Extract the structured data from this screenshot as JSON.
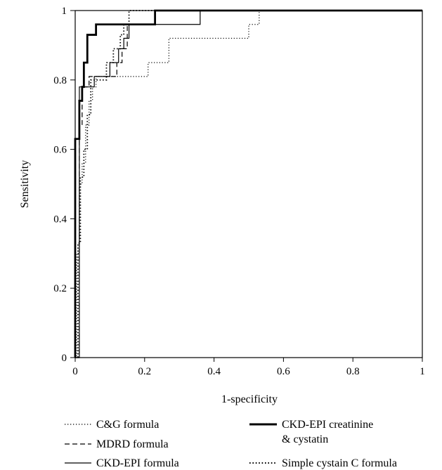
{
  "chart_data": {
    "type": "line",
    "title": "",
    "xlabel": "1-specificity",
    "ylabel": "Sensitivity",
    "xlim": [
      0,
      1
    ],
    "ylim": [
      0,
      1
    ],
    "xticks": [
      "0",
      "0.2",
      "0.4",
      "0.6",
      "0.8",
      "1"
    ],
    "yticks": [
      "0",
      "0.2",
      "0.4",
      "0.6",
      "0.8",
      "1"
    ],
    "grid": false,
    "legend": "bottom",
    "series": [
      {
        "name": "C&G formula",
        "style": "dotted-fine",
        "color": "#000000",
        "points": [
          [
            0,
            0
          ],
          [
            0.004,
            0
          ],
          [
            0.004,
            0.3
          ],
          [
            0.012,
            0.3
          ],
          [
            0.012,
            0.5
          ],
          [
            0.02,
            0.5
          ],
          [
            0.02,
            0.56
          ],
          [
            0.03,
            0.56
          ],
          [
            0.03,
            0.67
          ],
          [
            0.04,
            0.67
          ],
          [
            0.04,
            0.74
          ],
          [
            0.05,
            0.74
          ],
          [
            0.05,
            0.78
          ],
          [
            0.06,
            0.78
          ],
          [
            0.06,
            0.81
          ],
          [
            0.21,
            0.81
          ],
          [
            0.21,
            0.85
          ],
          [
            0.27,
            0.85
          ],
          [
            0.27,
            0.92
          ],
          [
            0.5,
            0.92
          ],
          [
            0.5,
            0.96
          ],
          [
            0.53,
            0.96
          ],
          [
            0.53,
            1
          ],
          [
            1,
            1
          ]
        ]
      },
      {
        "name": "MDRD formula",
        "style": "dashed",
        "color": "#000000",
        "points": [
          [
            0,
            0
          ],
          [
            0.012,
            0
          ],
          [
            0.012,
            0.67
          ],
          [
            0.02,
            0.67
          ],
          [
            0.02,
            0.78
          ],
          [
            0.04,
            0.78
          ],
          [
            0.04,
            0.81
          ],
          [
            0.12,
            0.81
          ],
          [
            0.12,
            0.85
          ],
          [
            0.135,
            0.85
          ],
          [
            0.135,
            0.89
          ],
          [
            0.15,
            0.89
          ],
          [
            0.15,
            0.96
          ],
          [
            0.23,
            0.96
          ],
          [
            0.23,
            1
          ],
          [
            1,
            1
          ]
        ]
      },
      {
        "name": "CKD-EPI formula",
        "style": "solid-thin",
        "color": "#000000",
        "points": [
          [
            0,
            0
          ],
          [
            0.012,
            0
          ],
          [
            0.012,
            0.78
          ],
          [
            0.055,
            0.78
          ],
          [
            0.055,
            0.81
          ],
          [
            0.1,
            0.81
          ],
          [
            0.1,
            0.85
          ],
          [
            0.125,
            0.85
          ],
          [
            0.125,
            0.89
          ],
          [
            0.14,
            0.89
          ],
          [
            0.14,
            0.92
          ],
          [
            0.155,
            0.92
          ],
          [
            0.155,
            0.96
          ],
          [
            0.36,
            0.96
          ],
          [
            0.36,
            1
          ],
          [
            1,
            1
          ]
        ]
      },
      {
        "name": "CKD-EPI creatinine & cystatin",
        "style": "solid-thick",
        "color": "#000000",
        "points": [
          [
            0,
            0
          ],
          [
            0,
            0.63
          ],
          [
            0.012,
            0.63
          ],
          [
            0.012,
            0.74
          ],
          [
            0.02,
            0.74
          ],
          [
            0.02,
            0.78
          ],
          [
            0.025,
            0.78
          ],
          [
            0.025,
            0.85
          ],
          [
            0.035,
            0.85
          ],
          [
            0.035,
            0.93
          ],
          [
            0.06,
            0.93
          ],
          [
            0.06,
            0.96
          ],
          [
            0.23,
            0.96
          ],
          [
            0.23,
            1
          ],
          [
            1,
            1
          ]
        ]
      },
      {
        "name": "Simple cystain C formula",
        "style": "dotted-coarse",
        "color": "#000000",
        "points": [
          [
            0,
            0
          ],
          [
            0.008,
            0
          ],
          [
            0.008,
            0.04
          ],
          [
            0.008,
            0.33
          ],
          [
            0.015,
            0.33
          ],
          [
            0.015,
            0.52
          ],
          [
            0.025,
            0.52
          ],
          [
            0.025,
            0.6
          ],
          [
            0.035,
            0.6
          ],
          [
            0.035,
            0.7
          ],
          [
            0.045,
            0.7
          ],
          [
            0.045,
            0.8
          ],
          [
            0.09,
            0.8
          ],
          [
            0.09,
            0.85
          ],
          [
            0.11,
            0.85
          ],
          [
            0.11,
            0.89
          ],
          [
            0.13,
            0.89
          ],
          [
            0.13,
            0.93
          ],
          [
            0.14,
            0.93
          ],
          [
            0.14,
            0.96
          ],
          [
            0.155,
            0.96
          ],
          [
            0.155,
            1
          ],
          [
            1,
            1
          ]
        ]
      }
    ]
  },
  "legend": {
    "items": [
      {
        "label": "C&G formula",
        "style": "dotted-fine"
      },
      {
        "label": "MDRD formula",
        "style": "dashed"
      },
      {
        "label": "CKD-EPI formula",
        "style": "solid-thin"
      },
      {
        "label_line1": "CKD-EPI creatinine",
        "label_line2": "& cystatin",
        "style": "solid-thick"
      },
      {
        "label": "Simple cystain C formula",
        "style": "dotted-coarse"
      }
    ]
  }
}
